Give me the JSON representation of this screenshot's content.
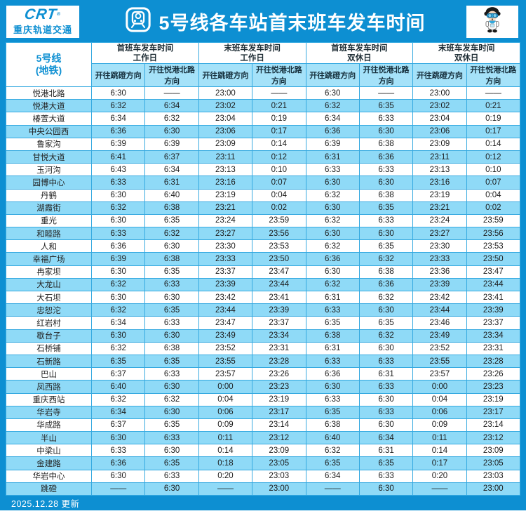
{
  "header": {
    "logo_abbr": "CRT",
    "logo_reg": "®",
    "logo_company": "重庆轨道交通",
    "title": "5号线各车站首末班车发车时间"
  },
  "table": {
    "line_label_line1": "5号线",
    "line_label_line2": "(地铁)",
    "groups": [
      {
        "line1": "首班车发车时间",
        "line2": "工作日"
      },
      {
        "line1": "末班车发车时间",
        "line2": "工作日"
      },
      {
        "line1": "首班车发车时间",
        "line2": "双休日"
      },
      {
        "line1": "末班车发车时间",
        "line2": "双休日"
      }
    ],
    "directions": [
      "开往跳磴方向",
      "开往悦港北路方向"
    ]
  },
  "stations": [
    {
      "name": "悦港北路",
      "times": [
        "6:30",
        "——",
        "23:00",
        "——",
        "6:30",
        "——",
        "23:00",
        "——"
      ]
    },
    {
      "name": "悦港大道",
      "times": [
        "6:32",
        "6:34",
        "23:02",
        "0:21",
        "6:32",
        "6:35",
        "23:02",
        "0:21"
      ]
    },
    {
      "name": "椿萱大道",
      "times": [
        "6:34",
        "6:32",
        "23:04",
        "0:19",
        "6:34",
        "6:33",
        "23:04",
        "0:19"
      ]
    },
    {
      "name": "中央公园西",
      "times": [
        "6:36",
        "6:30",
        "23:06",
        "0:17",
        "6:36",
        "6:30",
        "23:06",
        "0:17"
      ]
    },
    {
      "name": "鲁家沟",
      "times": [
        "6:39",
        "6:39",
        "23:09",
        "0:14",
        "6:39",
        "6:38",
        "23:09",
        "0:14"
      ]
    },
    {
      "name": "甘悦大道",
      "times": [
        "6:41",
        "6:37",
        "23:11",
        "0:12",
        "6:31",
        "6:36",
        "23:11",
        "0:12"
      ]
    },
    {
      "name": "玉河沟",
      "times": [
        "6:43",
        "6:34",
        "23:13",
        "0:10",
        "6:33",
        "6:33",
        "23:13",
        "0:10"
      ]
    },
    {
      "name": "园博中心",
      "times": [
        "6:33",
        "6:31",
        "23:16",
        "0:07",
        "6:30",
        "6:30",
        "23:16",
        "0:07"
      ]
    },
    {
      "name": "丹鹤",
      "times": [
        "6:30",
        "6:40",
        "23:19",
        "0:04",
        "6:32",
        "6:38",
        "23:19",
        "0:04"
      ]
    },
    {
      "name": "湖霞街",
      "times": [
        "6:32",
        "6:38",
        "23:21",
        "0:02",
        "6:30",
        "6:35",
        "23:21",
        "0:02"
      ]
    },
    {
      "name": "重光",
      "times": [
        "6:30",
        "6:35",
        "23:24",
        "23:59",
        "6:32",
        "6:33",
        "23:24",
        "23:59"
      ]
    },
    {
      "name": "和睦路",
      "times": [
        "6:33",
        "6:32",
        "23:27",
        "23:56",
        "6:30",
        "6:30",
        "23:27",
        "23:56"
      ]
    },
    {
      "name": "人和",
      "times": [
        "6:36",
        "6:30",
        "23:30",
        "23:53",
        "6:32",
        "6:35",
        "23:30",
        "23:53"
      ]
    },
    {
      "name": "幸福广场",
      "times": [
        "6:39",
        "6:38",
        "23:33",
        "23:50",
        "6:36",
        "6:32",
        "23:33",
        "23:50"
      ]
    },
    {
      "name": "冉家坝",
      "times": [
        "6:30",
        "6:35",
        "23:37",
        "23:47",
        "6:30",
        "6:38",
        "23:36",
        "23:47"
      ]
    },
    {
      "name": "大龙山",
      "times": [
        "6:32",
        "6:33",
        "23:39",
        "23:44",
        "6:32",
        "6:36",
        "23:39",
        "23:44"
      ]
    },
    {
      "name": "大石坝",
      "times": [
        "6:30",
        "6:30",
        "23:42",
        "23:41",
        "6:31",
        "6:32",
        "23:42",
        "23:41"
      ]
    },
    {
      "name": "忠恕沱",
      "times": [
        "6:32",
        "6:35",
        "23:44",
        "23:39",
        "6:33",
        "6:30",
        "23:44",
        "23:39"
      ]
    },
    {
      "name": "红岩村",
      "times": [
        "6:34",
        "6:33",
        "23:47",
        "23:37",
        "6:35",
        "6:35",
        "23:46",
        "23:37"
      ]
    },
    {
      "name": "歇台子",
      "times": [
        "6:30",
        "6:30",
        "23:49",
        "23:34",
        "6:38",
        "6:32",
        "23:49",
        "23:34"
      ]
    },
    {
      "name": "石桥铺",
      "times": [
        "6:32",
        "6:38",
        "23:52",
        "23:31",
        "6:31",
        "6:30",
        "23:52",
        "23:31"
      ]
    },
    {
      "name": "石新路",
      "times": [
        "6:35",
        "6:35",
        "23:55",
        "23:28",
        "6:33",
        "6:33",
        "23:55",
        "23:28"
      ]
    },
    {
      "name": "巴山",
      "times": [
        "6:37",
        "6:33",
        "23:57",
        "23:26",
        "6:36",
        "6:31",
        "23:57",
        "23:26"
      ]
    },
    {
      "name": "凤西路",
      "times": [
        "6:40",
        "6:30",
        "0:00",
        "23:23",
        "6:30",
        "6:33",
        "0:00",
        "23:23"
      ]
    },
    {
      "name": "重庆西站",
      "times": [
        "6:32",
        "6:32",
        "0:04",
        "23:19",
        "6:33",
        "6:30",
        "0:04",
        "23:19"
      ]
    },
    {
      "name": "华岩寺",
      "times": [
        "6:34",
        "6:30",
        "0:06",
        "23:17",
        "6:35",
        "6:33",
        "0:06",
        "23:17"
      ]
    },
    {
      "name": "华成路",
      "times": [
        "6:37",
        "6:35",
        "0:09",
        "23:14",
        "6:38",
        "6:30",
        "0:09",
        "23:14"
      ]
    },
    {
      "name": "半山",
      "times": [
        "6:30",
        "6:33",
        "0:11",
        "23:12",
        "6:40",
        "6:34",
        "0:11",
        "23:12"
      ]
    },
    {
      "name": "中梁山",
      "times": [
        "6:33",
        "6:30",
        "0:14",
        "23:09",
        "6:32",
        "6:31",
        "0:14",
        "23:09"
      ]
    },
    {
      "name": "金建路",
      "times": [
        "6:36",
        "6:35",
        "0:18",
        "23:05",
        "6:35",
        "6:35",
        "0:17",
        "23:05"
      ]
    },
    {
      "name": "华岩中心",
      "times": [
        "6:30",
        "6:33",
        "0:20",
        "23:03",
        "6:34",
        "6:33",
        "0:20",
        "23:03"
      ]
    },
    {
      "name": "跳磴",
      "times": [
        "——",
        "6:30",
        "——",
        "23:00",
        "——",
        "6:30",
        "——",
        "23:00"
      ]
    }
  ],
  "footer": {
    "updated": "2025.12.28 更新"
  },
  "colors": {
    "brand_blue": "#0d8fd2",
    "row_stripe": "#8fdaf7",
    "direction_header_bg": "#a5e2f9",
    "cell_border": "#35a9e0"
  }
}
